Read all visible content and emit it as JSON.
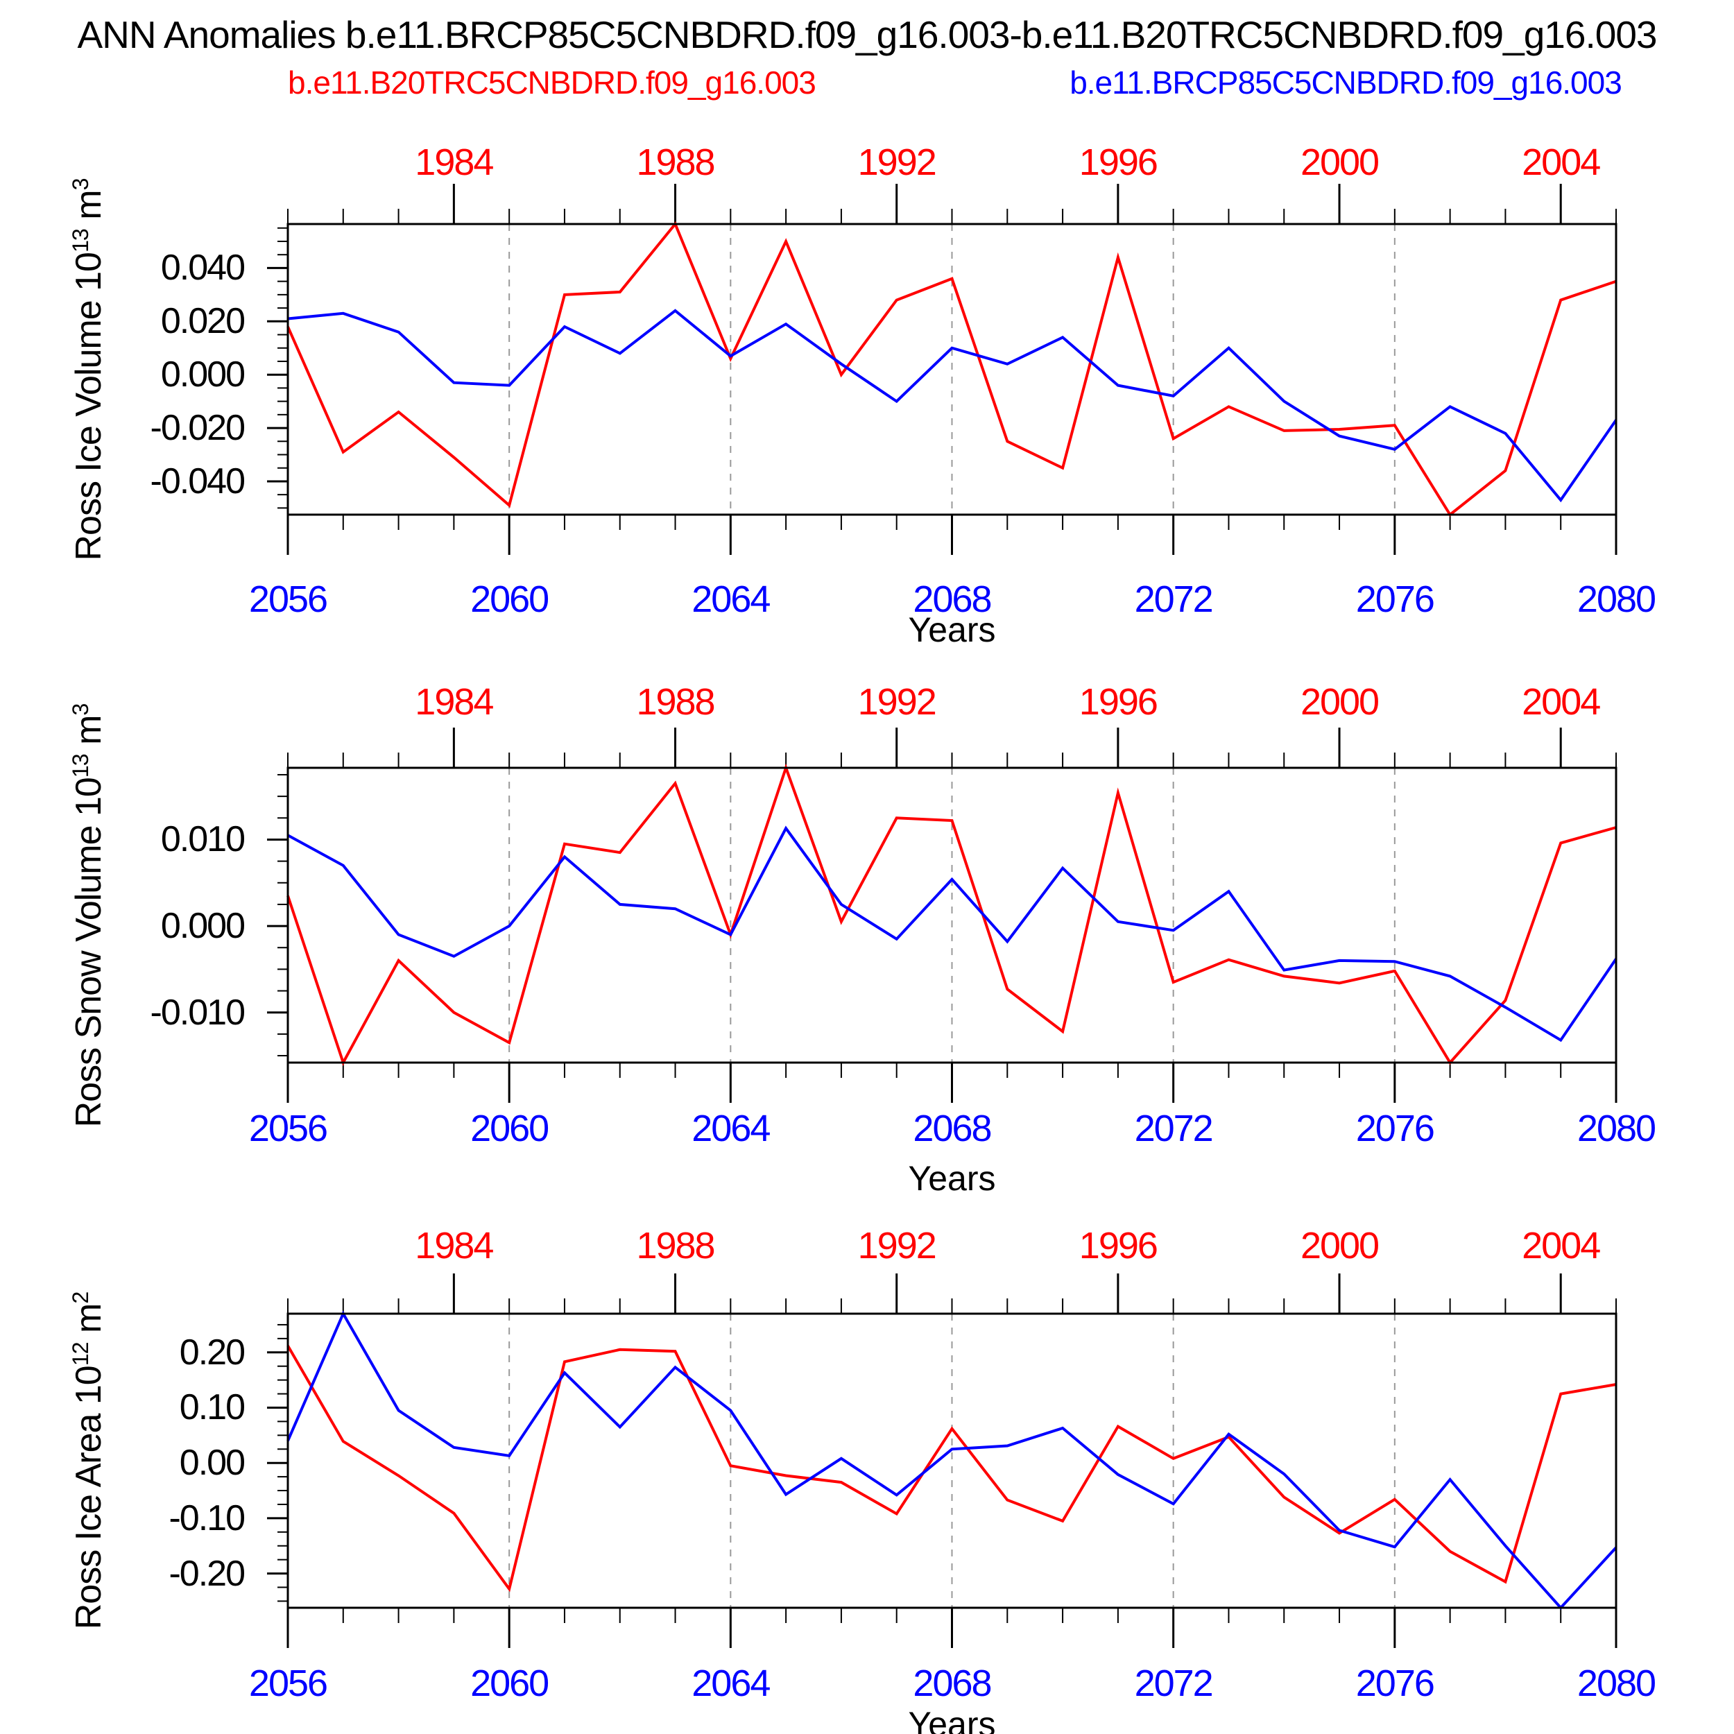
{
  "title": "ANN Anomalies b.e11.BRCP85C5CNBDRD.f09_g16.003-b.e11.B20TRC5CNBDRD.f09_g16.003",
  "legend": {
    "red": "b.e11.B20TRC5CNBDRD.f09_g16.003",
    "blue": "b.e11.BRCP85C5CNBDRD.f09_g16.003"
  },
  "colors": {
    "red": "#ff0000",
    "blue": "#0000ff",
    "grid": "#999999",
    "axis": "#000000"
  },
  "x_axis": {
    "label": "Years",
    "range": [
      2056,
      2080
    ],
    "bottom_tick_labels": [
      "2056",
      "2060",
      "2064",
      "2068",
      "2072",
      "2076",
      "2080"
    ],
    "bottom_tick_years": [
      2056,
      2060,
      2064,
      2068,
      2072,
      2076,
      2080
    ],
    "top_tick_labels": [
      "1984",
      "1988",
      "1992",
      "1996",
      "2000",
      "2004"
    ],
    "top_tick_years": [
      2059,
      2063,
      2067,
      2071,
      2075,
      2079
    ],
    "grid_years": [
      2060,
      2064,
      2068,
      2072,
      2076
    ],
    "minor_tick_step_years": 1
  },
  "chart_data": [
    {
      "type": "line",
      "ylabel": {
        "name": "Ross Ice Volume",
        "base": "10",
        "power": "13",
        "unit": "m",
        "unit_power": "3"
      },
      "ylim": [
        -0.0525,
        0.0565
      ],
      "y_minor_step": 0.005,
      "yticks": [
        {
          "value": 0.04,
          "label": "0.040"
        },
        {
          "value": 0.02,
          "label": "0.020"
        },
        {
          "value": 0.0,
          "label": "0.000"
        },
        {
          "value": -0.02,
          "label": "-0.020"
        },
        {
          "value": -0.04,
          "label": "-0.040"
        }
      ],
      "x": [
        2056,
        2057,
        2058,
        2059,
        2060,
        2061,
        2062,
        2063,
        2064,
        2065,
        2066,
        2067,
        2068,
        2069,
        2070,
        2071,
        2072,
        2073,
        2074,
        2075,
        2076,
        2077,
        2078,
        2079,
        2080
      ],
      "series": [
        {
          "name": "b.e11.B20TRC5CNBDRD.f09_g16.003",
          "color": "red",
          "values": [
            0.018,
            -0.029,
            -0.014,
            -0.031,
            -0.049,
            0.03,
            0.031,
            0.0565,
            0.006,
            0.05,
            0.0,
            0.028,
            0.036,
            -0.025,
            -0.035,
            0.044,
            -0.024,
            -0.012,
            -0.021,
            -0.0205,
            -0.019,
            -0.0525,
            -0.036,
            0.028,
            0.035
          ]
        },
        {
          "name": "b.e11.BRCP85C5CNBDRD.f09_g16.003",
          "color": "blue",
          "values": [
            0.021,
            0.023,
            0.016,
            -0.003,
            -0.004,
            0.018,
            0.008,
            0.024,
            0.007,
            0.019,
            0.004,
            -0.01,
            0.01,
            0.004,
            0.014,
            -0.004,
            -0.008,
            0.01,
            -0.01,
            -0.023,
            -0.028,
            -0.012,
            -0.022,
            -0.047,
            -0.017
          ]
        }
      ]
    },
    {
      "type": "line",
      "ylabel": {
        "name": "Ross Snow Volume",
        "base": "10",
        "power": "13",
        "unit": "m",
        "unit_power": "3"
      },
      "ylim": [
        -0.0158,
        0.0183
      ],
      "y_minor_step": 0.0025,
      "yticks": [
        {
          "value": 0.01,
          "label": "0.010"
        },
        {
          "value": 0.0,
          "label": "0.000"
        },
        {
          "value": -0.01,
          "label": "-0.010"
        }
      ],
      "x": [
        2056,
        2057,
        2058,
        2059,
        2060,
        2061,
        2062,
        2063,
        2064,
        2065,
        2066,
        2067,
        2068,
        2069,
        2070,
        2071,
        2072,
        2073,
        2074,
        2075,
        2076,
        2077,
        2078,
        2079,
        2080
      ],
      "series": [
        {
          "name": "b.e11.B20TRC5CNBDRD.f09_g16.003",
          "color": "red",
          "values": [
            0.0035,
            -0.0158,
            -0.004,
            -0.01,
            -0.0135,
            0.0095,
            0.0085,
            0.0165,
            -0.001,
            0.0183,
            0.0005,
            0.0125,
            0.0122,
            -0.0073,
            -0.0122,
            0.0154,
            -0.0065,
            -0.0039,
            -0.0058,
            -0.0066,
            -0.0052,
            -0.0158,
            -0.0086,
            0.0096,
            0.0114
          ]
        },
        {
          "name": "b.e11.BRCP85C5CNBDRD.f09_g16.003",
          "color": "blue",
          "values": [
            0.0105,
            0.007,
            -0.001,
            -0.0035,
            0.0,
            0.008,
            0.0025,
            0.002,
            -0.001,
            0.0113,
            0.0025,
            -0.0015,
            0.0054,
            -0.0018,
            0.0067,
            0.0005,
            -0.0005,
            0.004,
            -0.0051,
            -0.004,
            -0.0041,
            -0.0058,
            -0.0094,
            -0.0132,
            -0.0038
          ]
        }
      ]
    },
    {
      "type": "line",
      "ylabel": {
        "name": "Ross Ice Area",
        "base": "10",
        "power": "12",
        "unit": "m",
        "unit_power": "2"
      },
      "ylim": [
        -0.262,
        0.27
      ],
      "y_minor_step": 0.025,
      "yticks": [
        {
          "value": 0.2,
          "label": "0.20"
        },
        {
          "value": 0.1,
          "label": "0.10"
        },
        {
          "value": 0.0,
          "label": "0.00"
        },
        {
          "value": -0.1,
          "label": "-0.10"
        },
        {
          "value": -0.2,
          "label": "-0.20"
        }
      ],
      "x": [
        2056,
        2057,
        2058,
        2059,
        2060,
        2061,
        2062,
        2063,
        2064,
        2065,
        2066,
        2067,
        2068,
        2069,
        2070,
        2071,
        2072,
        2073,
        2074,
        2075,
        2076,
        2077,
        2078,
        2079,
        2080
      ],
      "series": [
        {
          "name": "b.e11.B20TRC5CNBDRD.f09_g16.003",
          "color": "red",
          "values": [
            0.212,
            0.039,
            -0.023,
            -0.091,
            -0.228,
            0.183,
            0.205,
            0.202,
            -0.005,
            -0.023,
            -0.035,
            -0.092,
            0.062,
            -0.067,
            -0.105,
            0.066,
            0.008,
            0.047,
            -0.062,
            -0.127,
            -0.066,
            -0.16,
            -0.215,
            0.125,
            0.142
          ]
        },
        {
          "name": "b.e11.BRCP85C5CNBDRD.f09_g16.003",
          "color": "blue",
          "values": [
            0.04,
            0.27,
            0.095,
            0.028,
            0.013,
            0.163,
            0.065,
            0.173,
            0.095,
            -0.057,
            0.008,
            -0.058,
            0.025,
            0.031,
            0.063,
            -0.021,
            -0.074,
            0.052,
            -0.02,
            -0.122,
            -0.152,
            -0.03,
            -0.15,
            -0.262,
            -0.153
          ]
        }
      ]
    }
  ]
}
